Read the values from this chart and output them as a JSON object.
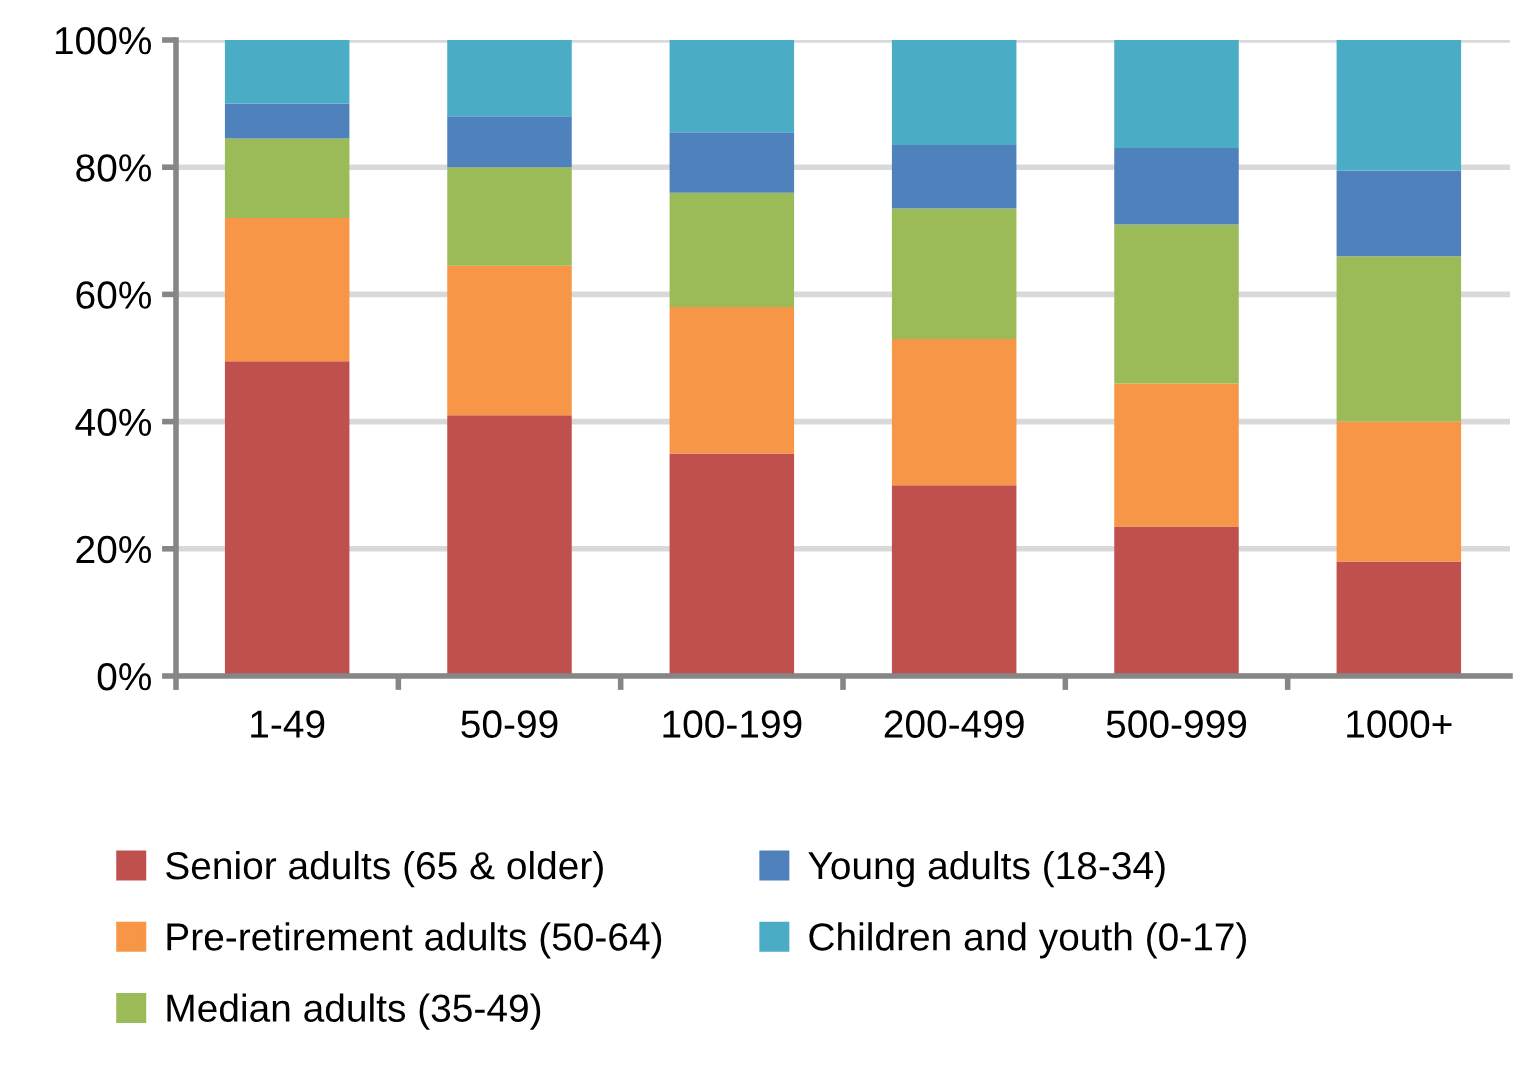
{
  "chart_data": {
    "type": "bar",
    "stacked": true,
    "categories": [
      "1-49",
      "50-99",
      "100-199",
      "200-499",
      "500-999",
      "1000+"
    ],
    "series": [
      {
        "name": "Senior adults (65 & older)",
        "color": "#c0504d",
        "values": [
          49.5,
          41,
          35,
          30,
          23.5,
          18
        ]
      },
      {
        "name": "Pre-retirement adults (50-64)",
        "color": "#f79646",
        "values": [
          22.5,
          23.5,
          23,
          23,
          22.5,
          22
        ]
      },
      {
        "name": "Median adults (35-49)",
        "color": "#9bbb59",
        "values": [
          12.5,
          15.5,
          18,
          20.5,
          25,
          26
        ]
      },
      {
        "name": "Young adults (18-34)",
        "color": "#4f81bd",
        "values": [
          5.5,
          8,
          9.5,
          10,
          12,
          13.5
        ]
      },
      {
        "name": "Children and youth (0-17)",
        "color": "#4bacc6",
        "values": [
          10,
          12,
          14.5,
          16.5,
          17,
          20.5
        ]
      }
    ],
    "ylim": [
      0,
      100
    ],
    "yticks": [
      {
        "value": 0,
        "label": "0%"
      },
      {
        "value": 20,
        "label": "20%"
      },
      {
        "value": 40,
        "label": "40%"
      },
      {
        "value": 60,
        "label": "60%"
      },
      {
        "value": 80,
        "label": "80%"
      },
      {
        "value": 100,
        "label": "100%"
      }
    ],
    "grid": "y",
    "legend": "bottom"
  }
}
